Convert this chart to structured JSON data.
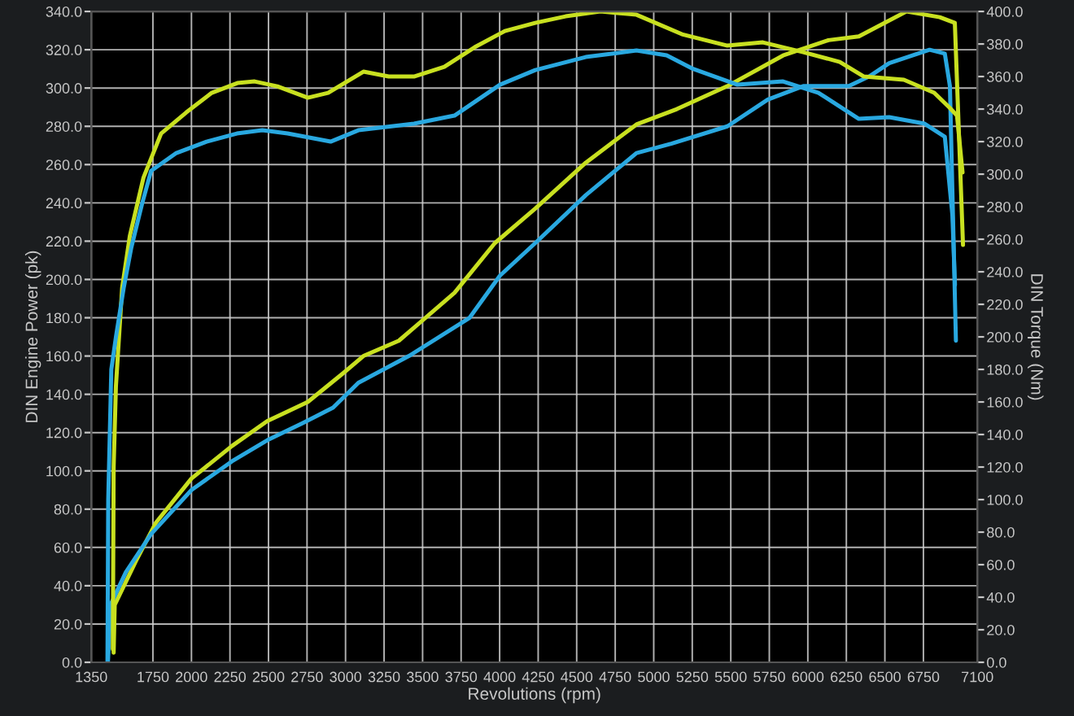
{
  "chart_data": {
    "type": "line",
    "xlabel": "Revolutions (rpm)",
    "ylabel": "DIN Engine Power (pk)",
    "y2label": "DIN Torque (Nm)",
    "xlim": [
      1350,
      7100
    ],
    "xticks": [
      1350,
      1750,
      2000,
      2250,
      2500,
      2750,
      3000,
      3250,
      3500,
      3750,
      4000,
      4250,
      4500,
      4750,
      5000,
      5250,
      5500,
      5750,
      6000,
      6250,
      6500,
      6750,
      7100
    ],
    "ylim": [
      0,
      340
    ],
    "yticks": [
      {
        "value": 0,
        "label": "0.0"
      },
      {
        "value": 20,
        "label": "20.0"
      },
      {
        "value": 40,
        "label": "40.0"
      },
      {
        "value": 60,
        "label": "60.0"
      },
      {
        "value": 80,
        "label": "80.0"
      },
      {
        "value": 100,
        "label": "100.0"
      },
      {
        "value": 120,
        "label": "120.0"
      },
      {
        "value": 140,
        "label": "140.0"
      },
      {
        "value": 160,
        "label": "160.0"
      },
      {
        "value": 180,
        "label": "180.0"
      },
      {
        "value": 200,
        "label": "200.0"
      },
      {
        "value": 220,
        "label": "220.0"
      },
      {
        "value": 240,
        "label": "240.0"
      },
      {
        "value": 260,
        "label": "260.0"
      },
      {
        "value": 280,
        "label": "280.0"
      },
      {
        "value": 300,
        "label": "300.0"
      },
      {
        "value": 320,
        "label": "320.0"
      },
      {
        "value": 340,
        "label": "340.0"
      }
    ],
    "y2lim": [
      0,
      400
    ],
    "y2ticks": [
      {
        "value": 0,
        "label": "0.0"
      },
      {
        "value": 20,
        "label": "20.0"
      },
      {
        "value": 40,
        "label": "40.0"
      },
      {
        "value": 60,
        "label": "60.0"
      },
      {
        "value": 80,
        "label": "80.0"
      },
      {
        "value": 100,
        "label": "100.0"
      },
      {
        "value": 120,
        "label": "120.0"
      },
      {
        "value": 140,
        "label": "140.0"
      },
      {
        "value": 160,
        "label": "160.0"
      },
      {
        "value": 180,
        "label": "180.0"
      },
      {
        "value": 200,
        "label": "200.0"
      },
      {
        "value": 220,
        "label": "220.0"
      },
      {
        "value": 240,
        "label": "240.0"
      },
      {
        "value": 260,
        "label": "260.0"
      },
      {
        "value": 280,
        "label": "280.0"
      },
      {
        "value": 300,
        "label": "300.0"
      },
      {
        "value": 320,
        "label": "320.0"
      },
      {
        "value": 340,
        "label": "340.0"
      },
      {
        "value": 360,
        "label": "360.0"
      },
      {
        "value": 380,
        "label": "380.0"
      },
      {
        "value": 400,
        "label": "400.0"
      }
    ],
    "grid": true,
    "line_style": "solid",
    "marker": "none",
    "series": [
      {
        "color": "#c8e020",
        "x": [
          1495,
          1502,
          1640,
          1770,
          2000,
          2263,
          2492,
          2755,
          2984,
          3116,
          3346,
          3707,
          3969,
          4231,
          4559,
          4888,
          5150,
          5478,
          5839,
          6134,
          6331,
          6640,
          6856,
          6954,
          7007
        ],
        "values": [
          5,
          30,
          53,
          73,
          96,
          113,
          126,
          136,
          151,
          160,
          168,
          193,
          219,
          237,
          261,
          281,
          289,
          301,
          317,
          325,
          327,
          340,
          337,
          334,
          218
        ]
      },
      {
        "color": "#29a8e0",
        "x": [
          1458,
          1475,
          1574,
          1738,
          2000,
          2263,
          2492,
          2722,
          2919,
          3083,
          3411,
          3805,
          4002,
          4231,
          4559,
          4888,
          5118,
          5478,
          5740,
          5970,
          6266,
          6397,
          6528,
          6790,
          6889,
          6922,
          6961
        ],
        "values": [
          0,
          30,
          47,
          67,
          90,
          105,
          116,
          125,
          133,
          146,
          160,
          180,
          202,
          219,
          244,
          266,
          271,
          280,
          294,
          301,
          301,
          306,
          313,
          320,
          318,
          301,
          168
        ]
      },
      {
        "color": "#c8e020",
        "axis": "y2",
        "x": [
          1490,
          1495,
          1510,
          1550,
          1600,
          1689,
          1803,
          1967,
          2132,
          2298,
          2410,
          2558,
          2755,
          2887,
          3116,
          3280,
          3444,
          3641,
          3838,
          4034,
          4231,
          4428,
          4654,
          4888,
          5183,
          5478,
          5708,
          5970,
          6207,
          6364,
          6623,
          6820,
          6918,
          6968,
          7004
        ],
        "values": [
          8,
          120,
          170,
          230,
          262,
          298,
          325,
          338,
          350,
          356,
          357,
          354,
          347,
          350,
          363,
          360,
          360,
          366,
          378,
          388,
          393,
          397,
          400,
          398,
          386,
          379,
          381,
          375,
          369,
          360,
          358,
          350,
          341,
          336,
          301
        ]
      },
      {
        "color": "#29a8e0",
        "axis": "y2",
        "x": [
          1455,
          1460,
          1480,
          1510,
          1560,
          1610,
          1680,
          1738,
          1902,
          2098,
          2295,
          2460,
          2624,
          2903,
          3083,
          3444,
          3707,
          4002,
          4231,
          4559,
          4888,
          5084,
          5248,
          5543,
          5839,
          6069,
          6331,
          6528,
          6758,
          6889,
          6938,
          6955
        ],
        "values": [
          0,
          100,
          180,
          200,
          230,
          255,
          282,
          302,
          313,
          320,
          325,
          327,
          325,
          320,
          327,
          331,
          336,
          355,
          364,
          372,
          376,
          373,
          365,
          355,
          357,
          350,
          334,
          335,
          331,
          323,
          275,
          232
        ]
      }
    ]
  }
}
